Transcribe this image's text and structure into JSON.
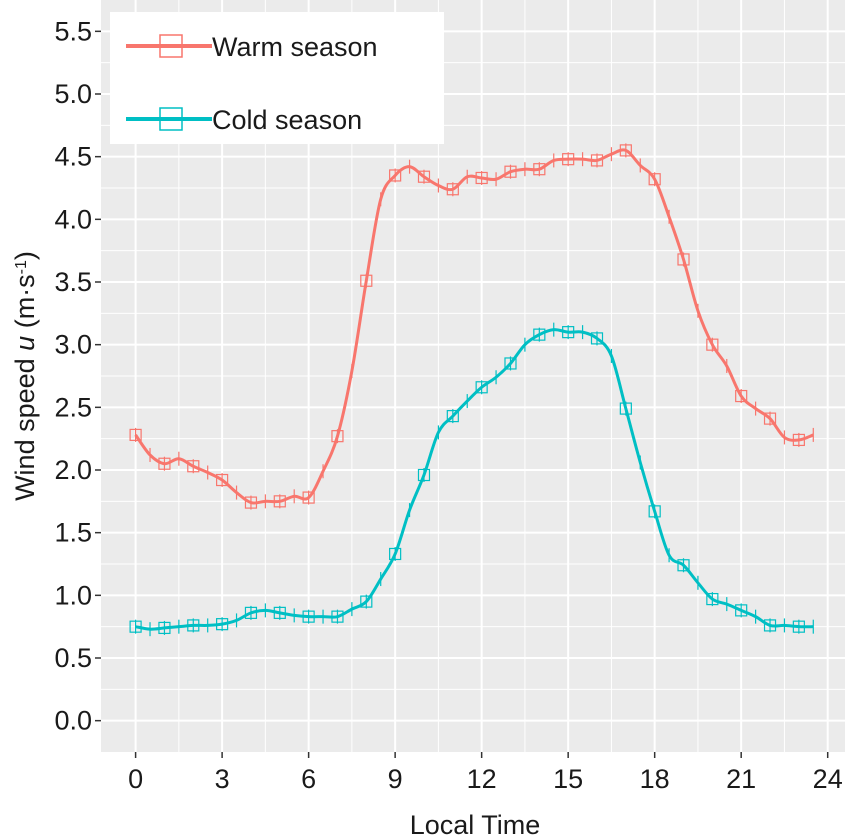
{
  "chart_data": {
    "type": "line",
    "title": "",
    "xlabel": "Local Time",
    "ylabel_prefix": "Wind  speed  ",
    "ylabel_symbol": "u",
    "ylabel_unit_open": " (m·s",
    "ylabel_unit_exp": "-1",
    "ylabel_unit_close": ")",
    "xlim": [
      -1.2,
      24.6
    ],
    "ylim": [
      -0.25,
      5.75
    ],
    "xticks": [
      0,
      3,
      6,
      9,
      12,
      15,
      18,
      21,
      24
    ],
    "xtick_labels": [
      "0",
      "3",
      "6",
      "9",
      "12",
      "15",
      "18",
      "21",
      "24"
    ],
    "yticks": [
      0.0,
      0.5,
      1.0,
      1.5,
      2.0,
      2.5,
      3.0,
      3.5,
      4.0,
      4.5,
      5.0,
      5.5
    ],
    "ytick_labels": [
      "0.0",
      "0.5",
      "1.0",
      "1.5",
      "2.0",
      "2.5",
      "3.0",
      "3.5",
      "4.0",
      "4.5",
      "5.0",
      "5.5"
    ],
    "grid": true,
    "legend_position": "top-left",
    "x": [
      0,
      0.5,
      1,
      1.5,
      2,
      2.5,
      3,
      3.5,
      4,
      4.5,
      5,
      5.5,
      6,
      6.5,
      7,
      7.5,
      8,
      8.5,
      9,
      9.5,
      10,
      10.5,
      11,
      11.5,
      12,
      12.5,
      13,
      13.5,
      14,
      14.5,
      15,
      15.5,
      16,
      16.5,
      17,
      17.5,
      18,
      18.5,
      19,
      19.5,
      20,
      20.5,
      21,
      21.5,
      22,
      22.5,
      23,
      23.5
    ],
    "series": [
      {
        "name": "Warm season",
        "color": "#f8766d",
        "values": [
          2.28,
          2.12,
          2.05,
          2.09,
          2.03,
          1.98,
          1.92,
          1.82,
          1.74,
          1.75,
          1.75,
          1.79,
          1.78,
          1.99,
          2.27,
          2.79,
          3.51,
          4.16,
          4.35,
          4.42,
          4.34,
          4.27,
          4.24,
          4.34,
          4.33,
          4.32,
          4.38,
          4.4,
          4.4,
          4.47,
          4.48,
          4.48,
          4.47,
          4.52,
          4.55,
          4.43,
          4.32,
          4.02,
          3.68,
          3.27,
          3.0,
          2.83,
          2.59,
          2.49,
          2.41,
          2.26,
          2.24,
          2.28
        ]
      },
      {
        "name": "Cold season",
        "color": "#00bfc4",
        "values": [
          0.75,
          0.73,
          0.74,
          0.75,
          0.76,
          0.76,
          0.77,
          0.8,
          0.86,
          0.88,
          0.86,
          0.84,
          0.83,
          0.83,
          0.83,
          0.89,
          0.95,
          1.13,
          1.33,
          1.68,
          1.96,
          2.3,
          2.43,
          2.55,
          2.66,
          2.74,
          2.85,
          3.0,
          3.08,
          3.12,
          3.1,
          3.1,
          3.05,
          2.91,
          2.49,
          2.06,
          1.67,
          1.32,
          1.24,
          1.1,
          0.97,
          0.93,
          0.88,
          0.83,
          0.76,
          0.76,
          0.75,
          0.75
        ]
      }
    ]
  }
}
